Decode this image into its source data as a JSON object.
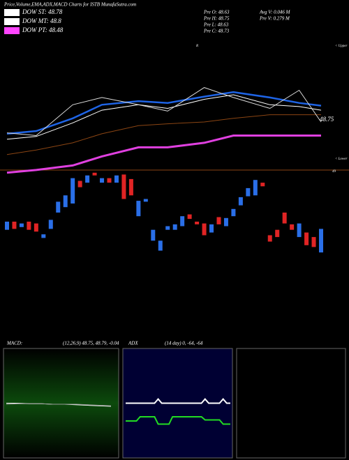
{
  "chart_data": [
    {
      "type": "candlestick",
      "title": "Price,Volume,EMA,ADX,MACD Charts for ISTB MunafaSutra.com",
      "legend": [
        {
          "name": "DOW ST: 48.78",
          "color": "#ffffff"
        },
        {
          "name": "DOW MT: 48.8",
          "color": "#ffffff"
        },
        {
          "name": "DOW PT: 48.48",
          "color": "#ff44ff"
        }
      ],
      "stats": [
        "Pre O: 48.63",
        "Pre H: 48.75",
        "Pre L: 48.63",
        "Pre C: 48.73",
        "Avg V: 0.046 M",
        "Pre V: 0.279 M"
      ],
      "annotations": [
        "R",
        "< Upper",
        "48.75",
        "< Lower",
        "49"
      ],
      "ylim": [
        48,
        50.3
      ],
      "up_color": "#2a6fe8",
      "down_color": "#e02424",
      "open": [
        48.51,
        48.6,
        48.54,
        48.6,
        48.58,
        48.42,
        48.52,
        48.7,
        48.76,
        48.8,
        49.05,
        49.03,
        49.14,
        49.03,
        49.08,
        49.03,
        49.12,
        49.07,
        48.66,
        48.82,
        48.39,
        48.28,
        48.51,
        48.51,
        48.55,
        48.68,
        48.6,
        48.58,
        48.48,
        48.65,
        48.55,
        48.66,
        48.78,
        48.88,
        48.89,
        49.03,
        48.45,
        48.51,
        48.7,
        48.57,
        48.43,
        48.48,
        48.43,
        48.26
      ],
      "close": [
        48.6,
        48.52,
        48.58,
        48.51,
        48.49,
        48.46,
        48.62,
        48.82,
        48.89,
        49.08,
        48.98,
        49.11,
        49.11,
        49.08,
        49.03,
        49.11,
        48.85,
        48.89,
        48.83,
        48.85,
        48.51,
        48.39,
        48.55,
        48.57,
        48.66,
        48.63,
        48.57,
        48.45,
        48.57,
        48.57,
        48.64,
        48.74,
        48.87,
        48.97,
        49.06,
        48.99,
        48.38,
        48.43,
        48.58,
        48.51,
        48.58,
        48.34,
        48.32,
        48.52
      ],
      "line_x": [
        0,
        4,
        9,
        13,
        18,
        22,
        27,
        31,
        36,
        40,
        43
      ],
      "lines": [
        {
          "color": "#8B4513",
          "values": [
            49.34,
            49.39,
            49.47,
            49.57,
            49.66,
            49.68,
            49.7,
            49.74,
            49.78,
            49.78,
            49.78
          ]
        },
        {
          "color": "#e040e0",
          "values": [
            49.14,
            49.17,
            49.22,
            49.32,
            49.42,
            49.42,
            49.47,
            49.55,
            49.55,
            49.55,
            49.55
          ]
        },
        {
          "color": "#ffffff",
          "values": [
            49.51,
            49.54,
            49.69,
            49.83,
            49.89,
            49.85,
            49.95,
            50.0,
            49.89,
            49.87,
            49.83
          ]
        },
        {
          "color": "#1e64e6",
          "values": [
            49.57,
            49.6,
            49.74,
            49.89,
            49.93,
            49.91,
            49.98,
            50.03,
            49.97,
            49.91,
            49.88
          ]
        },
        {
          "color": "#dddddd",
          "values": [
            49.58,
            49.55,
            49.89,
            49.97,
            49.89,
            49.82,
            50.08,
            49.97,
            49.85,
            50.05,
            49.7
          ]
        }
      ]
    },
    {
      "type": "line",
      "title": "MACD:",
      "subtitle": "(12,26,9) 48.75, 48.79, -0.04",
      "ylim": [
        -1,
        1
      ],
      "series": [
        {
          "color": "#ffffff",
          "values": [
            0.02,
            0.02,
            0.01,
            0.01,
            0.0,
            0.0,
            -0.01,
            -0.02,
            -0.03,
            -0.04
          ]
        },
        {
          "color": "#999999",
          "values": [
            0.0,
            0.01,
            0.01,
            0.01,
            0.0,
            0.0,
            0.0,
            -0.01,
            -0.02,
            -0.03
          ]
        }
      ]
    },
    {
      "type": "line",
      "title": "ADX",
      "subtitle": "(14 day) 0, -64, -64",
      "ylim": [
        0,
        100
      ],
      "series": [
        {
          "color": "#ffffff",
          "values": [
            51,
            51,
            51,
            51,
            51,
            51,
            51,
            51,
            51,
            55,
            51,
            51,
            51,
            51,
            51,
            51,
            51,
            51,
            51,
            51,
            51,
            51,
            55,
            51,
            51,
            51,
            51,
            55,
            51,
            51
          ]
        },
        {
          "color": "#22dd22",
          "values": [
            34,
            34,
            34,
            34,
            38,
            38,
            38,
            38,
            38,
            31,
            31,
            31,
            31,
            38,
            38,
            38,
            38,
            38,
            38,
            38,
            38,
            38,
            35,
            35,
            35,
            35,
            35,
            31,
            31,
            31
          ]
        }
      ]
    }
  ]
}
